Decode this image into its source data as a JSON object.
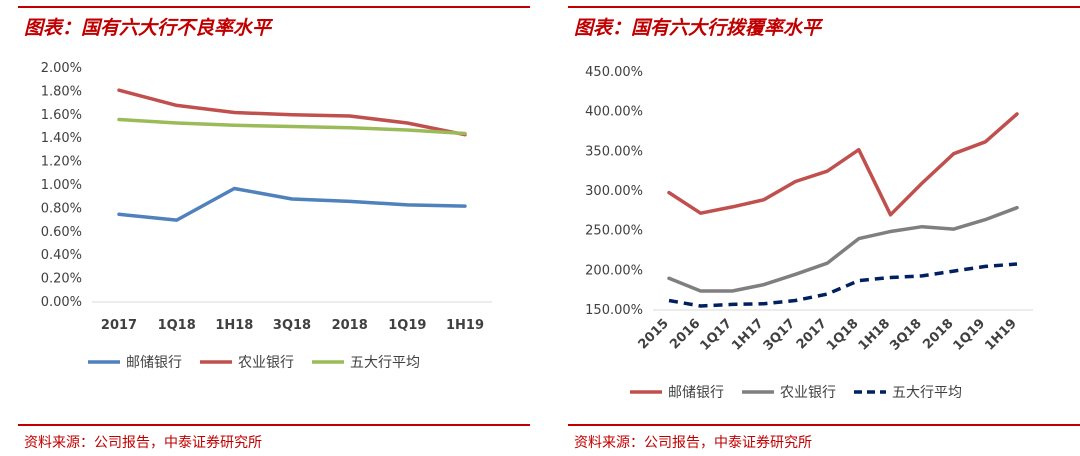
{
  "left_panel": {
    "title": "图表：国有六大行不良率水平",
    "source": "资料来源：公司报告，中泰证券研究所"
  },
  "right_panel": {
    "title": "图表：国有六大行拨覆率水平",
    "source": "资料来源：公司报告，中泰证券研究所"
  },
  "chart_data": [
    {
      "type": "line",
      "categories": [
        "2017",
        "1Q18",
        "1H18",
        "3Q18",
        "2018",
        "1Q19",
        "1H19"
      ],
      "ylim": [
        0,
        2.0
      ],
      "yticks": [
        "0.00%",
        "0.20%",
        "0.40%",
        "0.60%",
        "0.80%",
        "1.00%",
        "1.20%",
        "1.40%",
        "1.60%",
        "1.80%",
        "2.00%"
      ],
      "grid": false,
      "legend": "bottom",
      "series": [
        {
          "name": "邮储银行",
          "color": "#4f81bd",
          "dashed": false,
          "values": [
            0.75,
            0.7,
            0.97,
            0.88,
            0.86,
            0.83,
            0.82
          ]
        },
        {
          "name": "农业银行",
          "color": "#c0504d",
          "dashed": false,
          "values": [
            1.81,
            1.68,
            1.62,
            1.6,
            1.59,
            1.53,
            1.43
          ]
        },
        {
          "name": "五大行平均",
          "color": "#9bbb59",
          "dashed": false,
          "values": [
            1.56,
            1.53,
            1.51,
            1.5,
            1.49,
            1.47,
            1.44
          ]
        }
      ]
    },
    {
      "type": "line",
      "categories": [
        "2015",
        "2016",
        "1Q17",
        "1H17",
        "3Q17",
        "2017",
        "1Q18",
        "1H18",
        "3Q18",
        "2018",
        "1Q19",
        "1H19"
      ],
      "ylim": [
        150,
        450
      ],
      "yticks": [
        "150.00%",
        "200.00%",
        "250.00%",
        "300.00%",
        "350.00%",
        "400.00%",
        "450.00%"
      ],
      "grid": false,
      "legend": "bottom",
      "series": [
        {
          "name": "邮储银行",
          "color": "#c0504d",
          "dashed": false,
          "values": [
            298,
            272,
            280,
            289,
            312,
            325,
            352,
            270,
            310,
            347,
            362,
            397
          ]
        },
        {
          "name": "农业银行",
          "color": "#7f7f7f",
          "dashed": false,
          "values": [
            190,
            174,
            174,
            182,
            195,
            209,
            240,
            249,
            255,
            252,
            264,
            279
          ]
        },
        {
          "name": "五大行平均",
          "color": "#002060",
          "dashed": true,
          "values": [
            162,
            155,
            157,
            158,
            162,
            170,
            187,
            191,
            193,
            199,
            205,
            208
          ]
        }
      ]
    }
  ]
}
